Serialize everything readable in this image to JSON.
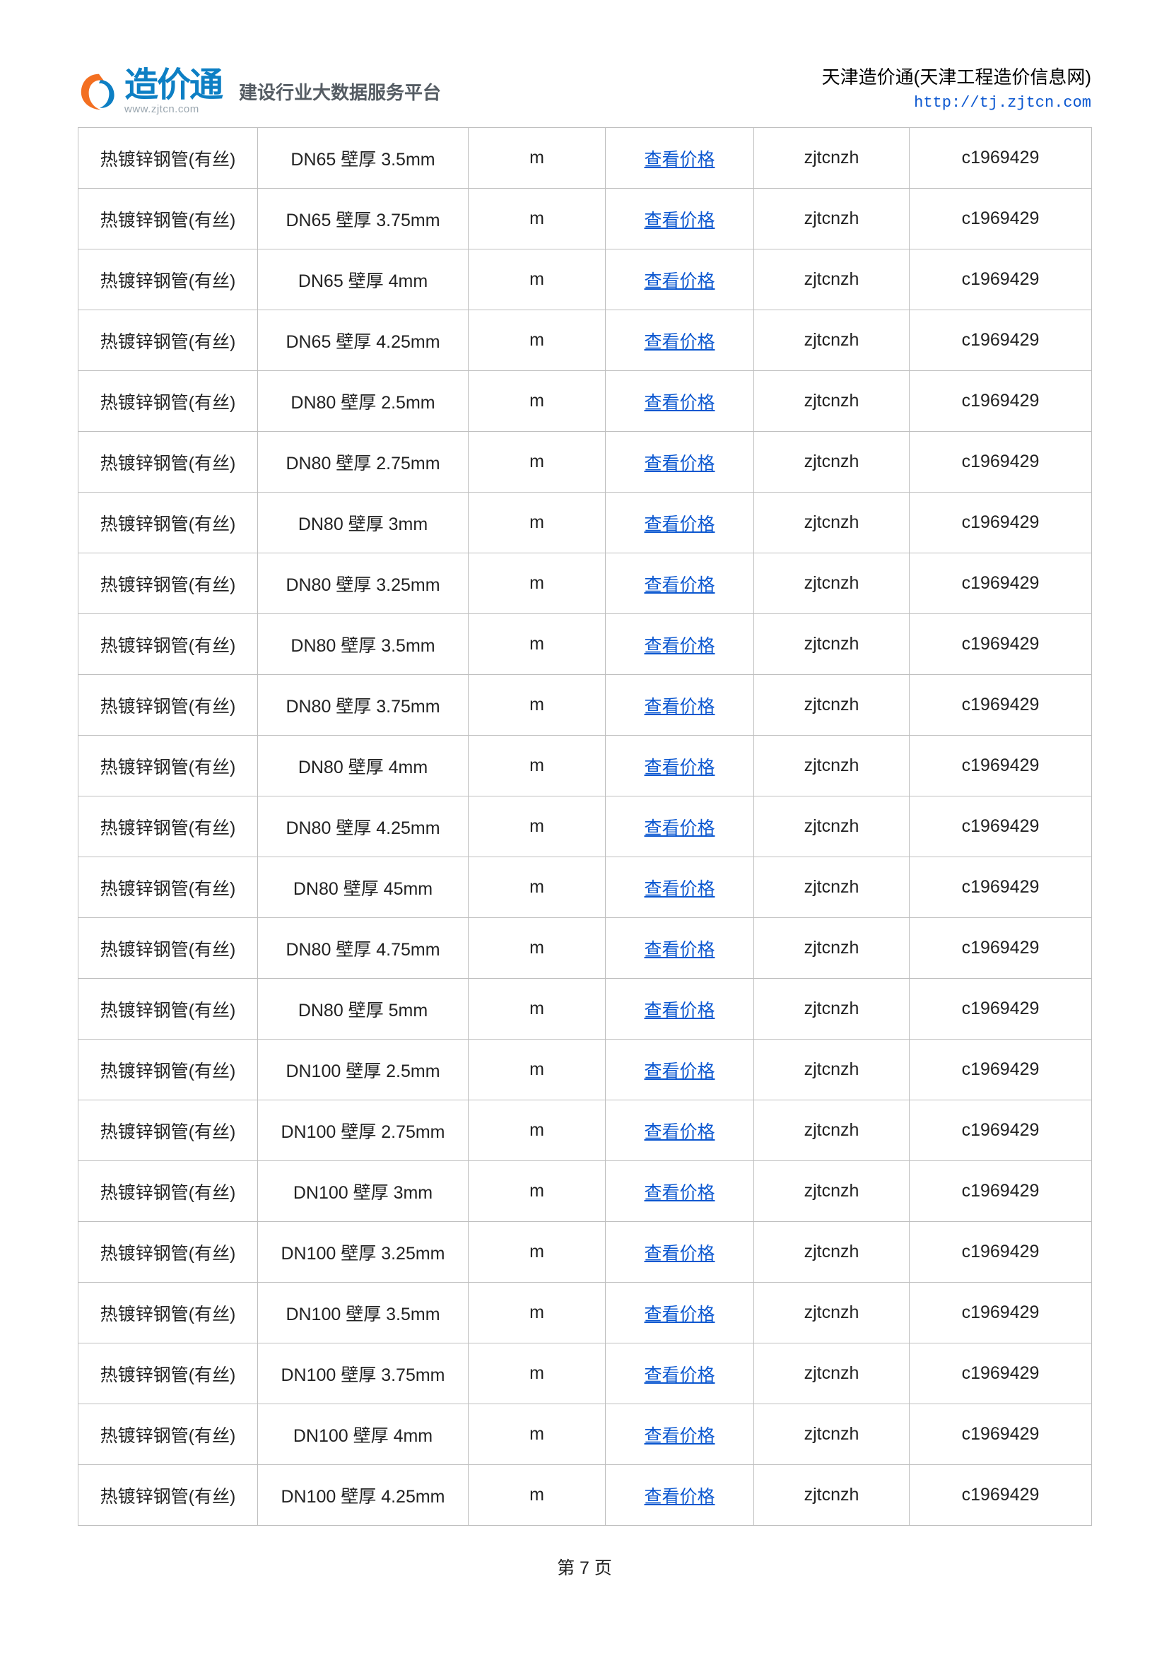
{
  "header": {
    "logo_text": "造价通",
    "logo_url": "www.zjtcn.com",
    "slogan": "建设行业大数据服务平台",
    "site_title": "天津造价通(天津工程造价信息网)",
    "site_url": "http://tj.zjtcn.com"
  },
  "table": {
    "price_link_label": "查看价格",
    "rows": [
      {
        "name": "热镀锌钢管(有丝)",
        "spec": "DN65 壁厚 3.5mm",
        "unit": "m",
        "col5": "zjtcnzh",
        "col6": "c1969429"
      },
      {
        "name": "热镀锌钢管(有丝)",
        "spec": "DN65 壁厚 3.75mm",
        "unit": "m",
        "col5": "zjtcnzh",
        "col6": "c1969429"
      },
      {
        "name": "热镀锌钢管(有丝)",
        "spec": "DN65 壁厚 4mm",
        "unit": "m",
        "col5": "zjtcnzh",
        "col6": "c1969429"
      },
      {
        "name": "热镀锌钢管(有丝)",
        "spec": "DN65 壁厚 4.25mm",
        "unit": "m",
        "col5": "zjtcnzh",
        "col6": "c1969429"
      },
      {
        "name": "热镀锌钢管(有丝)",
        "spec": "DN80 壁厚 2.5mm",
        "unit": "m",
        "col5": "zjtcnzh",
        "col6": "c1969429"
      },
      {
        "name": "热镀锌钢管(有丝)",
        "spec": "DN80 壁厚 2.75mm",
        "unit": "m",
        "col5": "zjtcnzh",
        "col6": "c1969429"
      },
      {
        "name": "热镀锌钢管(有丝)",
        "spec": "DN80 壁厚 3mm",
        "unit": "m",
        "col5": "zjtcnzh",
        "col6": "c1969429"
      },
      {
        "name": "热镀锌钢管(有丝)",
        "spec": "DN80 壁厚 3.25mm",
        "unit": "m",
        "col5": "zjtcnzh",
        "col6": "c1969429"
      },
      {
        "name": "热镀锌钢管(有丝)",
        "spec": "DN80 壁厚 3.5mm",
        "unit": "m",
        "col5": "zjtcnzh",
        "col6": "c1969429"
      },
      {
        "name": "热镀锌钢管(有丝)",
        "spec": "DN80 壁厚 3.75mm",
        "unit": "m",
        "col5": "zjtcnzh",
        "col6": "c1969429"
      },
      {
        "name": "热镀锌钢管(有丝)",
        "spec": "DN80 壁厚 4mm",
        "unit": "m",
        "col5": "zjtcnzh",
        "col6": "c1969429"
      },
      {
        "name": "热镀锌钢管(有丝)",
        "spec": "DN80 壁厚 4.25mm",
        "unit": "m",
        "col5": "zjtcnzh",
        "col6": "c1969429"
      },
      {
        "name": "热镀锌钢管(有丝)",
        "spec": "DN80 壁厚 45mm",
        "unit": "m",
        "col5": "zjtcnzh",
        "col6": "c1969429"
      },
      {
        "name": "热镀锌钢管(有丝)",
        "spec": "DN80 壁厚 4.75mm",
        "unit": "m",
        "col5": "zjtcnzh",
        "col6": "c1969429"
      },
      {
        "name": "热镀锌钢管(有丝)",
        "spec": "DN80 壁厚 5mm",
        "unit": "m",
        "col5": "zjtcnzh",
        "col6": "c1969429"
      },
      {
        "name": "热镀锌钢管(有丝)",
        "spec": "DN100 壁厚 2.5mm",
        "unit": "m",
        "col5": "zjtcnzh",
        "col6": "c1969429"
      },
      {
        "name": "热镀锌钢管(有丝)",
        "spec": "DN100 壁厚 2.75mm",
        "unit": "m",
        "col5": "zjtcnzh",
        "col6": "c1969429"
      },
      {
        "name": "热镀锌钢管(有丝)",
        "spec": "DN100 壁厚 3mm",
        "unit": "m",
        "col5": "zjtcnzh",
        "col6": "c1969429"
      },
      {
        "name": "热镀锌钢管(有丝)",
        "spec": "DN100 壁厚 3.25mm",
        "unit": "m",
        "col5": "zjtcnzh",
        "col6": "c1969429"
      },
      {
        "name": "热镀锌钢管(有丝)",
        "spec": "DN100 壁厚 3.5mm",
        "unit": "m",
        "col5": "zjtcnzh",
        "col6": "c1969429"
      },
      {
        "name": "热镀锌钢管(有丝)",
        "spec": "DN100 壁厚 3.75mm",
        "unit": "m",
        "col5": "zjtcnzh",
        "col6": "c1969429"
      },
      {
        "name": "热镀锌钢管(有丝)",
        "spec": "DN100 壁厚 4mm",
        "unit": "m",
        "col5": "zjtcnzh",
        "col6": "c1969429"
      },
      {
        "name": "热镀锌钢管(有丝)",
        "spec": "DN100 壁厚 4.25mm",
        "unit": "m",
        "col5": "zjtcnzh",
        "col6": "c1969429"
      }
    ]
  },
  "footer": {
    "page_label": "第 7 页"
  },
  "colors": {
    "brand_blue": "#0d7fc4",
    "brand_orange": "#f36f21",
    "link_blue": "#0b57d0",
    "border_gray": "#bfbfbf",
    "text": "#222222",
    "url_gray": "#9aa6af"
  }
}
